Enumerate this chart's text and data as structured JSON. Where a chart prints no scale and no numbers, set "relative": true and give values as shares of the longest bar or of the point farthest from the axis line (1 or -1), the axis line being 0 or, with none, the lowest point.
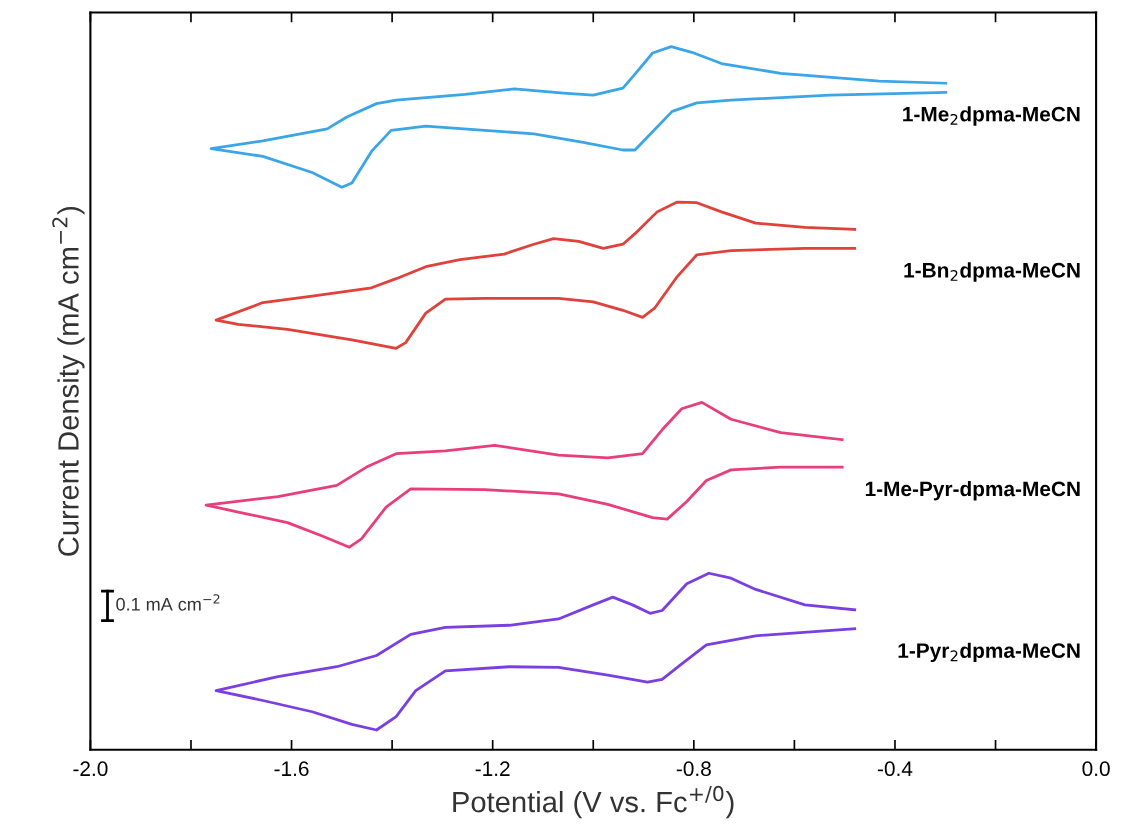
{
  "chart_data": {
    "type": "line",
    "relative": true,
    "xlabel": "Potential (V vs. Fc$^{+/0}$)",
    "ylabel": "Current Density (mA cm$^{−2}$)",
    "xlim": [
      -2.0,
      0.0
    ],
    "xticks": [
      {
        "value": -2.0,
        "label": "-2.0"
      },
      {
        "value": -1.8,
        "label": null
      },
      {
        "value": -1.6,
        "label": "-1.6"
      },
      {
        "value": -1.4,
        "label": null
      },
      {
        "value": -1.2,
        "label": "-1.2"
      },
      {
        "value": -1.0,
        "label": null
      },
      {
        "value": -0.8,
        "label": "-0.8"
      },
      {
        "value": -0.6,
        "label": null
      },
      {
        "value": -0.4,
        "label": "-0.4"
      },
      {
        "value": -0.2,
        "label": null
      },
      {
        "value": 0.0,
        "label": "0.0"
      }
    ],
    "tick_labels": "x",
    "grid": false,
    "legend": false,
    "marker": "none",
    "line_style": "solid",
    "annotations": [
      "0.1 mA cm$^{−2}$"
    ],
    "series": [
      {
        "name": "1-Me$_{2}$dpma-MeCN",
        "color": "#3aa6e8",
        "x": [
          -0.299,
          -0.431,
          -0.627,
          -0.745,
          -0.804,
          -0.845,
          -0.882,
          -0.917,
          -0.941,
          -1.0,
          -1.059,
          -1.157,
          -1.255,
          -1.392,
          -1.431,
          -1.49,
          -1.529,
          -1.657,
          -1.76,
          -1.657,
          -1.559,
          -1.5,
          -1.48,
          -1.441,
          -1.402,
          -1.333,
          -1.216,
          -1.118,
          -1.02,
          -0.941,
          -0.917,
          -0.882,
          -0.843,
          -0.794,
          -0.726,
          -0.529,
          -0.299
        ],
        "values": [
          0.948,
          0.951,
          0.962,
          0.976,
          0.992,
          1.0,
          0.991,
          0.961,
          0.941,
          0.931,
          0.934,
          0.94,
          0.932,
          0.924,
          0.919,
          0.9,
          0.883,
          0.866,
          0.855,
          0.844,
          0.821,
          0.8,
          0.806,
          0.851,
          0.881,
          0.887,
          0.881,
          0.876,
          0.864,
          0.853,
          0.853,
          0.879,
          0.908,
          0.92,
          0.924,
          0.931,
          0.935
        ]
      },
      {
        "name": "1-Bn$_{2}$dpma-MeCN",
        "color": "#e0413a",
        "x": [
          -0.48,
          -0.579,
          -0.677,
          -0.745,
          -0.794,
          -0.833,
          -0.873,
          -0.917,
          -0.941,
          -0.98,
          -1.029,
          -1.079,
          -1.118,
          -1.177,
          -1.265,
          -1.333,
          -1.392,
          -1.441,
          -1.559,
          -1.657,
          -1.75,
          -1.706,
          -1.608,
          -1.48,
          -1.392,
          -1.373,
          -1.333,
          -1.294,
          -1.216,
          -1.069,
          -1.0,
          -0.941,
          -0.902,
          -0.878,
          -0.833,
          -0.794,
          -0.726,
          -0.579,
          -0.48
        ],
        "values": [
          0.74,
          0.743,
          0.749,
          0.765,
          0.778,
          0.779,
          0.765,
          0.734,
          0.719,
          0.713,
          0.723,
          0.727,
          0.719,
          0.705,
          0.697,
          0.687,
          0.67,
          0.657,
          0.645,
          0.636,
          0.611,
          0.605,
          0.598,
          0.583,
          0.571,
          0.579,
          0.621,
          0.641,
          0.642,
          0.642,
          0.637,
          0.625,
          0.615,
          0.628,
          0.673,
          0.704,
          0.71,
          0.713,
          0.713
        ]
      },
      {
        "name": "1-Me-Pyr-dpma-MeCN",
        "color": "#e83e7c",
        "x": [
          -0.505,
          -0.627,
          -0.726,
          -0.784,
          -0.824,
          -0.863,
          -0.902,
          -0.971,
          -1.069,
          -1.196,
          -1.294,
          -1.392,
          -1.451,
          -1.51,
          -1.627,
          -1.77,
          -1.706,
          -1.608,
          -1.539,
          -1.485,
          -1.461,
          -1.412,
          -1.363,
          -1.216,
          -1.069,
          -0.971,
          -0.882,
          -0.853,
          -0.814,
          -0.775,
          -0.726,
          -0.627,
          -0.505
        ],
        "values": [
          0.441,
          0.451,
          0.47,
          0.494,
          0.485,
          0.455,
          0.421,
          0.415,
          0.419,
          0.433,
          0.425,
          0.421,
          0.402,
          0.376,
          0.36,
          0.348,
          0.338,
          0.323,
          0.304,
          0.288,
          0.3,
          0.345,
          0.371,
          0.37,
          0.364,
          0.349,
          0.33,
          0.328,
          0.353,
          0.383,
          0.398,
          0.402,
          0.402
        ]
      },
      {
        "name": "1-Pyr$_{2}$dpma-MeCN",
        "color": "#7a3fe0",
        "x": [
          -0.48,
          -0.579,
          -0.677,
          -0.726,
          -0.77,
          -0.814,
          -0.863,
          -0.887,
          -0.922,
          -0.961,
          -1.0,
          -1.069,
          -1.167,
          -1.294,
          -1.363,
          -1.431,
          -1.51,
          -1.627,
          -1.75,
          -1.657,
          -1.559,
          -1.48,
          -1.431,
          -1.392,
          -1.353,
          -1.294,
          -1.167,
          -1.069,
          -0.971,
          -0.892,
          -0.863,
          -0.824,
          -0.775,
          -0.677,
          -0.48
        ],
        "values": [
          0.199,
          0.206,
          0.228,
          0.244,
          0.251,
          0.236,
          0.198,
          0.194,
          0.206,
          0.217,
          0.206,
          0.186,
          0.177,
          0.174,
          0.164,
          0.134,
          0.118,
          0.104,
          0.084,
          0.07,
          0.054,
          0.036,
          0.028,
          0.047,
          0.084,
          0.112,
          0.118,
          0.117,
          0.106,
          0.096,
          0.1,
          0.122,
          0.149,
          0.162,
          0.172
        ]
      }
    ]
  }
}
